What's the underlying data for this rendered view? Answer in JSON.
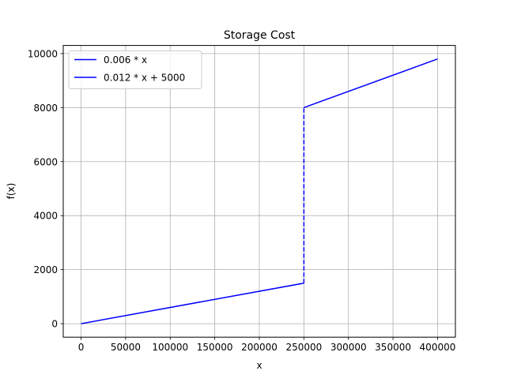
{
  "chart_data": {
    "type": "line",
    "title": "Storage Cost",
    "xlabel": "x",
    "ylabel": "f(x)",
    "xlim": [
      -20000,
      420000
    ],
    "ylim": [
      -500,
      10300
    ],
    "x_ticks": [
      0,
      50000,
      100000,
      150000,
      200000,
      250000,
      300000,
      350000,
      400000
    ],
    "x_tick_labels": [
      "0",
      "50000",
      "100000",
      "150000",
      "200000",
      "250000",
      "300000",
      "350000",
      "400000"
    ],
    "y_ticks": [
      0,
      2000,
      4000,
      6000,
      8000,
      10000
    ],
    "y_tick_labels": [
      "0",
      "2000",
      "4000",
      "6000",
      "8000",
      "10000"
    ],
    "grid": true,
    "legend_position": "upper-left",
    "series": [
      {
        "name": "0.006 * x",
        "color": "#0000ff",
        "style": "solid",
        "points": [
          [
            0,
            0
          ],
          [
            250000,
            1500
          ]
        ]
      },
      {
        "name": "0.012 * x + 5000",
        "color": "#0000ff",
        "style": "solid",
        "points": [
          [
            250000,
            8000
          ],
          [
            400000,
            9800
          ]
        ]
      }
    ],
    "connectors": [
      {
        "color": "#0000ff",
        "style": "dashed",
        "points": [
          [
            250000,
            1500
          ],
          [
            250000,
            8000
          ]
        ]
      }
    ]
  }
}
